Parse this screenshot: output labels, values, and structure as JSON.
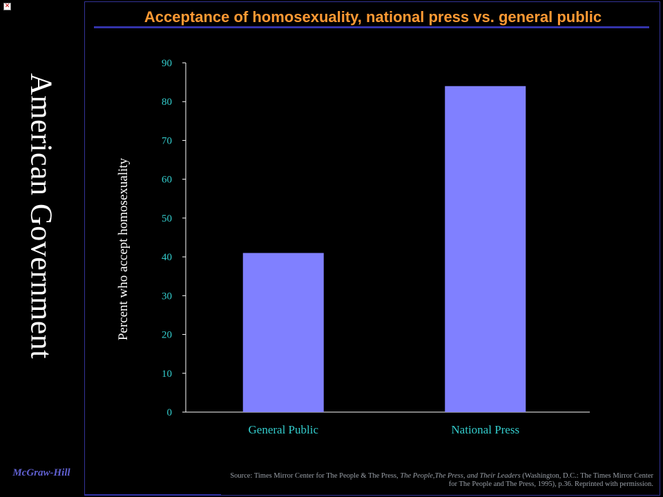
{
  "sidebar": {
    "title": "American Government",
    "publisher": "McGraw-Hill",
    "broken_image_glyph": "✕"
  },
  "colors": {
    "background": "#000000",
    "title": "#ff9933",
    "accent_line": "#3333aa",
    "bar_fill": "#8080ff",
    "axis_text": "#33cccc",
    "axis_line": "#ffffff",
    "text": "#ffffff"
  },
  "chart_data": {
    "type": "bar",
    "title": "Acceptance of homosexuality, national press vs. general public",
    "ylabel": "Percent who accept homosexuality",
    "xlabel": "",
    "categories": [
      "General Public",
      "National Press"
    ],
    "values": [
      41,
      84
    ],
    "ylim": [
      0,
      90
    ],
    "yticks": [
      0,
      10,
      20,
      30,
      40,
      50,
      60,
      70,
      80,
      90
    ],
    "grid": false,
    "legend": "none"
  },
  "source": {
    "prefix": "Source: Times Mirror Center for The People & The Press, ",
    "italic": "The People,The Press, and Their Leaders",
    "suffix": " (Washington, D.C.: The Times Mirror Center for The People and The Press, 1995), p.36. Reprinted with permission."
  }
}
